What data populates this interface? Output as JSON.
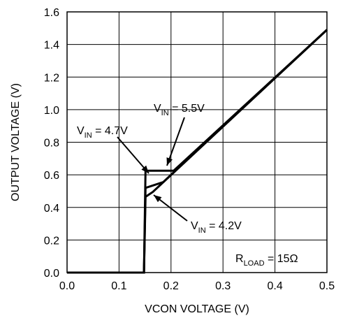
{
  "chart_data": {
    "type": "line",
    "xlabel": "VCON VOLTAGE (V)",
    "ylabel": "OUTPUT VOLTAGE (V)",
    "xlim": [
      0,
      0.5
    ],
    "ylim": [
      0,
      1.6
    ],
    "grid": true,
    "x_ticks": [
      "0.0",
      "0.1",
      "0.2",
      "0.3",
      "0.4",
      "0.5"
    ],
    "y_ticks": [
      "0.0",
      "0.2",
      "0.4",
      "0.6",
      "0.8",
      "1.0",
      "1.2",
      "1.4",
      "1.6"
    ],
    "series": [
      {
        "name": "VIN = 5.5V",
        "points": [
          [
            0,
            0
          ],
          [
            0.148,
            0
          ],
          [
            0.151,
            0.625
          ],
          [
            0.205,
            0.625
          ],
          [
            0.5,
            1.49
          ]
        ]
      },
      {
        "name": "VIN = 4.7V",
        "points": [
          [
            0,
            0
          ],
          [
            0.148,
            0
          ],
          [
            0.151,
            0.52
          ],
          [
            0.185,
            0.555
          ],
          [
            0.5,
            1.49
          ]
        ]
      },
      {
        "name": "VIN = 4.2V",
        "points": [
          [
            0,
            0
          ],
          [
            0.148,
            0
          ],
          [
            0.151,
            0.465
          ],
          [
            0.165,
            0.495
          ],
          [
            0.5,
            1.49
          ]
        ]
      }
    ],
    "annotations": [
      {
        "id": "vin55",
        "main": "V",
        "sub": "IN",
        "rest": " = 5.5V",
        "target": [
          0.19,
          0.63
        ]
      },
      {
        "id": "vin47",
        "main": "V",
        "sub": "IN",
        "rest": " = 4.7V",
        "target": [
          0.157,
          0.565
        ]
      },
      {
        "id": "vin42",
        "main": "V",
        "sub": "IN",
        "rest": " = 4.2V",
        "target": [
          0.165,
          0.485
        ]
      },
      {
        "id": "rload",
        "main": "R",
        "sub": "LOAD",
        "rest": " = 15Ω"
      }
    ]
  }
}
